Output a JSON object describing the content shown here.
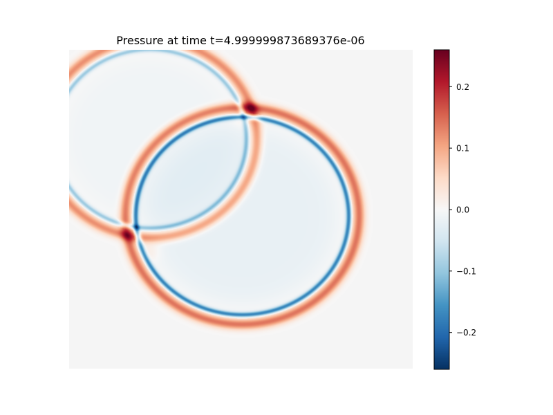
{
  "chart_data": {
    "type": "heatmap",
    "title": "Pressure at time t=4.999999873689376e-06",
    "xlabel": "",
    "ylabel": "",
    "background_value": 0.0,
    "colormap": "RdBu_r",
    "colorbar": {
      "vmin": -0.26,
      "vmax": 0.26,
      "ticks": [
        0.2,
        0.1,
        0.0,
        -0.1,
        -0.2
      ],
      "tick_labels": [
        "0.2",
        "0.1",
        "0.0",
        "−0.1",
        "−0.2"
      ]
    },
    "wavefronts": [
      {
        "name": "left",
        "center": [
          0.235,
          0.722
        ],
        "radius": 0.292,
        "peak_positive": 0.12,
        "peak_negative": -0.1,
        "interior_value": -0.01
      },
      {
        "name": "right",
        "center": [
          0.503,
          0.48
        ],
        "radius": 0.322,
        "peak_positive": 0.14,
        "peak_negative": -0.18,
        "interior_value": -0.02
      }
    ],
    "intersection_peaks": [
      {
        "location": [
          0.51,
          0.8
        ],
        "value": 0.26
      },
      {
        "location": [
          0.235,
          0.37
        ],
        "value": 0.24
      }
    ],
    "colors": {
      "background": "#f5f5f5",
      "cmap": [
        "#053061",
        "#2166ac",
        "#4393c3",
        "#92c5de",
        "#d1e5f0",
        "#f7f7f7",
        "#fddbc7",
        "#f4a582",
        "#d6604d",
        "#b2182b",
        "#67001f"
      ]
    }
  }
}
